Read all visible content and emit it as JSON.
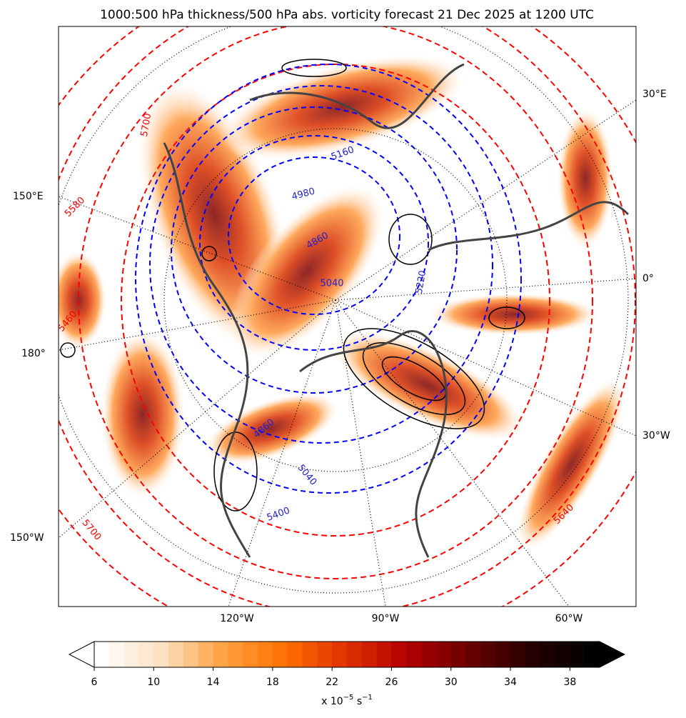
{
  "title": "1000:500 hPa thickness/500 hPa abs. vorticity forecast 21 Dec 2025 at 1200 UTC",
  "map": {
    "lon_labels": [
      "30°E",
      "150°E",
      "0°",
      "180°",
      "30°W",
      "150°W",
      "120°W",
      "90°W",
      "60°W"
    ],
    "thickness_labels_red": [
      "5580",
      "5460",
      "5700",
      "5640",
      "5700"
    ],
    "thickness_labels_blue": [
      "5160",
      "4980",
      "4860",
      "5040",
      "5400",
      "5040",
      "4860",
      "5220"
    ]
  },
  "colorbar": {
    "lim": [
      6,
      40
    ],
    "step": 1,
    "ticks": [
      6,
      10,
      14,
      18,
      22,
      26,
      30,
      34,
      38
    ],
    "colormap": [
      "#ffffff",
      "#fde0c0",
      "#ffa040",
      "#ff7000",
      "#e03000",
      "#b00000",
      "#6a0000",
      "#250000",
      "#000000"
    ],
    "label": {
      "text": "x 10",
      "exp1": "−5",
      "unit": " s",
      "exp2": "−1"
    }
  }
}
